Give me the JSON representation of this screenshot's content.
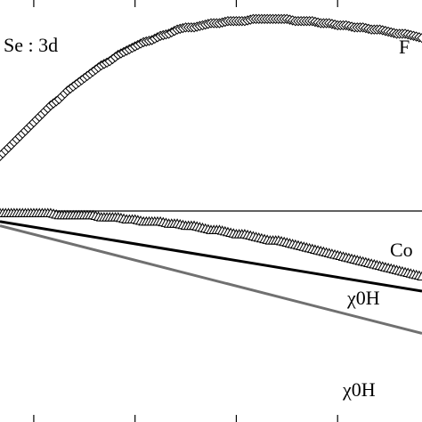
{
  "chart_data": {
    "type": "scatter",
    "xlim": [
      0,
      1
    ],
    "ylim": [
      -1,
      1
    ],
    "grid": false,
    "annotations": {
      "corner": "Se : 3d",
      "right_top": "F",
      "right_mid": "Co",
      "right_line1": "χ0H",
      "right_line2": "χ0H"
    },
    "series": [
      {
        "marker": "diamond",
        "color": "#000000",
        "x": [
          0.0,
          0.02,
          0.04,
          0.06,
          0.08,
          0.1,
          0.12,
          0.14,
          0.16,
          0.18,
          0.2,
          0.22,
          0.24,
          0.26,
          0.28,
          0.3,
          0.32,
          0.34,
          0.36,
          0.38,
          0.4,
          0.42,
          0.44,
          0.46,
          0.48,
          0.5,
          0.52,
          0.54,
          0.56,
          0.58,
          0.6,
          0.62,
          0.64,
          0.66,
          0.68,
          0.7,
          0.72,
          0.74,
          0.76,
          0.78,
          0.8,
          0.82,
          0.84,
          0.86,
          0.88,
          0.9,
          0.92,
          0.94,
          0.96,
          0.98,
          1.0
        ],
        "y": [
          0.26,
          0.3,
          0.34,
          0.38,
          0.42,
          0.46,
          0.5,
          0.53,
          0.57,
          0.6,
          0.63,
          0.66,
          0.69,
          0.71,
          0.74,
          0.76,
          0.78,
          0.8,
          0.81,
          0.83,
          0.84,
          0.86,
          0.87,
          0.87,
          0.88,
          0.89,
          0.89,
          0.9,
          0.9,
          0.9,
          0.91,
          0.91,
          0.91,
          0.91,
          0.91,
          0.9,
          0.9,
          0.9,
          0.89,
          0.89,
          0.88,
          0.88,
          0.87,
          0.87,
          0.86,
          0.86,
          0.85,
          0.84,
          0.84,
          0.83,
          0.82
        ]
      },
      {
        "marker": "triangle",
        "color": "#000000",
        "x": [
          0.0,
          0.02,
          0.04,
          0.06,
          0.08,
          0.1,
          0.12,
          0.14,
          0.16,
          0.18,
          0.2,
          0.22,
          0.24,
          0.26,
          0.28,
          0.3,
          0.32,
          0.34,
          0.36,
          0.38,
          0.4,
          0.42,
          0.44,
          0.46,
          0.48,
          0.5,
          0.52,
          0.54,
          0.56,
          0.58,
          0.6,
          0.62,
          0.64,
          0.66,
          0.68,
          0.7,
          0.72,
          0.74,
          0.76,
          0.78,
          0.8,
          0.82,
          0.84,
          0.86,
          0.88,
          0.9,
          0.92,
          0.94,
          0.96,
          0.98,
          1.0
        ],
        "y": [
          -0.01,
          -0.01,
          -0.01,
          -0.01,
          -0.01,
          -0.01,
          -0.01,
          -0.02,
          -0.02,
          -0.02,
          -0.02,
          -0.02,
          -0.03,
          -0.03,
          -0.03,
          -0.04,
          -0.04,
          -0.05,
          -0.05,
          -0.05,
          -0.06,
          -0.06,
          -0.07,
          -0.07,
          -0.08,
          -0.09,
          -0.09,
          -0.1,
          -0.11,
          -0.11,
          -0.12,
          -0.13,
          -0.14,
          -0.14,
          -0.15,
          -0.16,
          -0.17,
          -0.18,
          -0.19,
          -0.2,
          -0.21,
          -0.22,
          -0.23,
          -0.24,
          -0.25,
          -0.26,
          -0.27,
          -0.28,
          -0.29,
          -0.3,
          -0.31
        ]
      },
      {
        "marker": "none",
        "line": "solid",
        "color": "#000000",
        "x": [
          0.0,
          1.0
        ],
        "y": [
          -0.05,
          -0.38
        ]
      },
      {
        "marker": "none",
        "line": "solid",
        "color": "#707070",
        "x": [
          0.0,
          1.0
        ],
        "y": [
          -0.07,
          -0.58
        ]
      }
    ]
  }
}
